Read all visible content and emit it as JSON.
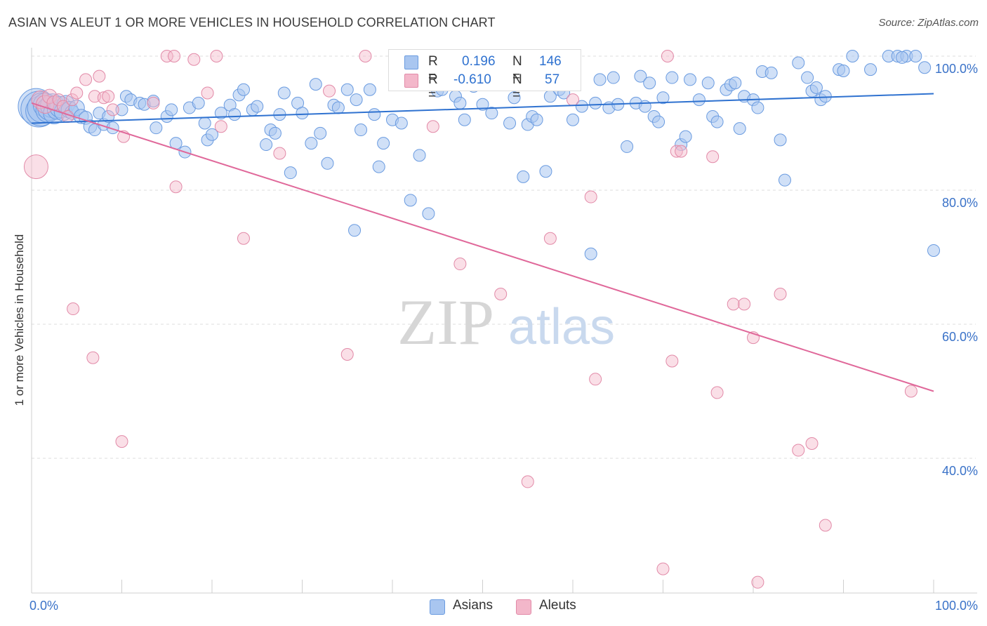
{
  "title": "ASIAN VS ALEUT 1 OR MORE VEHICLES IN HOUSEHOLD CORRELATION CHART",
  "source": "Source: ZipAtlas.com",
  "watermark": {
    "zip": "ZIP",
    "atlas": "atlas"
  },
  "legend": {
    "r_label": "R =",
    "n_label": "N =",
    "series": [
      {
        "name": "Asians",
        "r": "0.196",
        "n": "146",
        "color": "#6a9be0",
        "fill": "#a9c6f0",
        "line": "#2f72d0"
      },
      {
        "name": "Aleuts",
        "r": "-0.610",
        "n": "57",
        "color": "#e28aa8",
        "fill": "#f3b7ca",
        "line": "#e0689a"
      }
    ]
  },
  "chart_data": {
    "type": "scatter",
    "title": "ASIAN VS ALEUT 1 OR MORE VEHICLES IN HOUSEHOLD CORRELATION CHART",
    "xlabel": "",
    "ylabel": "1 or more Vehicles in Household",
    "xlim": [
      0,
      100
    ],
    "ylim": [
      20,
      102
    ],
    "x_tick_labels": [
      "0.0%",
      "100.0%"
    ],
    "y_tick_labels": [
      "40.0%",
      "60.0%",
      "80.0%",
      "100.0%"
    ],
    "y_ticks": [
      40,
      60,
      80,
      100
    ],
    "grid": true,
    "series": [
      {
        "name": "Asians",
        "trend": [
          [
            0,
            90.0
          ],
          [
            100,
            94.4
          ]
        ],
        "points": [
          [
            0.5,
            92.5,
            3
          ],
          [
            0.8,
            92.1,
            3
          ],
          [
            1.0,
            91.8,
            2.5
          ],
          [
            1.2,
            92.3,
            2.5
          ],
          [
            1.5,
            92.7,
            2
          ],
          [
            1.8,
            91.9,
            2
          ],
          [
            2.0,
            92.2,
            2
          ],
          [
            2.3,
            92.6,
            2
          ],
          [
            2.5,
            91.5,
            1.8
          ],
          [
            2.8,
            92.0,
            1.6
          ],
          [
            3.2,
            92.4,
            1.8
          ],
          [
            3.5,
            91.7,
            1.5
          ],
          [
            3.8,
            92.8,
            1.5
          ],
          [
            4.2,
            92.0,
            1.4
          ],
          [
            4.5,
            91.6,
            1.2
          ],
          [
            5.0,
            92.3,
            1.3
          ],
          [
            5.5,
            91.0,
            1.2
          ],
          [
            6.0,
            90.8,
            1.1
          ],
          [
            6.5,
            89.5,
            1.1
          ],
          [
            7.0,
            89.0,
            1
          ],
          [
            7.5,
            91.5,
            1
          ],
          [
            8.0,
            89.8,
            1
          ],
          [
            8.5,
            91.0,
            1
          ],
          [
            9.0,
            89.3,
            1
          ],
          [
            10.0,
            92.0,
            1
          ],
          [
            10.5,
            94.0,
            1
          ],
          [
            11.0,
            93.5,
            1
          ],
          [
            12.0,
            93.0,
            1
          ],
          [
            12.5,
            92.8,
            1
          ],
          [
            13.5,
            93.3,
            1
          ],
          [
            13.8,
            89.3,
            1
          ],
          [
            15.0,
            91.0,
            1
          ],
          [
            15.5,
            92.0,
            1
          ],
          [
            16.0,
            87.0,
            1
          ],
          [
            17.0,
            85.7,
            1
          ],
          [
            17.5,
            92.3,
            1
          ],
          [
            18.5,
            93.0,
            1
          ],
          [
            19.5,
            87.5,
            1
          ],
          [
            20.0,
            88.3,
            1
          ],
          [
            19.2,
            90.0,
            1
          ],
          [
            21.0,
            91.5,
            1
          ],
          [
            22.0,
            92.7,
            1
          ],
          [
            22.5,
            91.3,
            1
          ],
          [
            23.0,
            94.2,
            1
          ],
          [
            23.5,
            95.0,
            1
          ],
          [
            24.5,
            92.0,
            1
          ],
          [
            25.0,
            92.5,
            1
          ],
          [
            26.0,
            86.8,
            1
          ],
          [
            26.5,
            89.0,
            1
          ],
          [
            27.0,
            88.5,
            1
          ],
          [
            27.5,
            91.3,
            1
          ],
          [
            28.0,
            94.5,
            1
          ],
          [
            28.7,
            82.6,
            1
          ],
          [
            29.5,
            93.0,
            1
          ],
          [
            30.0,
            91.5,
            1
          ],
          [
            31.0,
            87.0,
            1
          ],
          [
            31.5,
            95.8,
            1
          ],
          [
            32.0,
            88.5,
            1
          ],
          [
            32.8,
            84.0,
            1
          ],
          [
            33.5,
            92.7,
            1
          ],
          [
            34.0,
            92.3,
            1
          ],
          [
            35.0,
            95.0,
            1
          ],
          [
            35.8,
            74.0,
            1
          ],
          [
            36.0,
            93.5,
            1
          ],
          [
            36.5,
            89.0,
            1
          ],
          [
            37.5,
            95.0,
            1
          ],
          [
            38.0,
            91.3,
            1
          ],
          [
            38.5,
            83.5,
            1
          ],
          [
            39.0,
            87.0,
            1
          ],
          [
            40.0,
            90.5,
            1
          ],
          [
            41.0,
            90.0,
            1
          ],
          [
            42.0,
            78.5,
            1
          ],
          [
            43.0,
            85.2,
            1
          ],
          [
            44.0,
            76.5,
            1
          ],
          [
            45.0,
            94.8,
            1
          ],
          [
            45.5,
            95.0,
            1
          ],
          [
            46.5,
            96.0,
            1
          ],
          [
            47.0,
            94.0,
            1
          ],
          [
            47.5,
            93.0,
            1
          ],
          [
            48.0,
            90.5,
            1
          ],
          [
            49.0,
            95.5,
            1
          ],
          [
            50.0,
            92.8,
            1
          ],
          [
            51.0,
            91.5,
            1
          ],
          [
            52.0,
            96.0,
            1
          ],
          [
            53.0,
            90.0,
            1
          ],
          [
            53.5,
            93.8,
            1
          ],
          [
            54.5,
            82.0,
            1
          ],
          [
            55.0,
            89.8,
            1
          ],
          [
            55.5,
            91.0,
            1
          ],
          [
            56.0,
            90.5,
            1
          ],
          [
            57.0,
            82.8,
            1
          ],
          [
            57.5,
            94.0,
            1
          ],
          [
            58.5,
            95.0,
            1
          ],
          [
            59.0,
            94.5,
            1
          ],
          [
            60.0,
            90.5,
            1
          ],
          [
            61.0,
            92.5,
            1
          ],
          [
            62.0,
            70.5,
            1
          ],
          [
            62.5,
            93.0,
            1
          ],
          [
            63.0,
            96.5,
            1
          ],
          [
            64.0,
            92.3,
            1
          ],
          [
            64.5,
            96.8,
            1
          ],
          [
            65.0,
            92.8,
            1
          ],
          [
            66.0,
            86.5,
            1
          ],
          [
            67.0,
            93.0,
            1
          ],
          [
            67.5,
            97.0,
            1
          ],
          [
            68.0,
            92.5,
            1
          ],
          [
            68.5,
            96.0,
            1
          ],
          [
            69.0,
            91.0,
            1
          ],
          [
            69.5,
            90.2,
            1
          ],
          [
            70.0,
            93.8,
            1
          ],
          [
            71.0,
            96.8,
            1
          ],
          [
            72.0,
            86.8,
            1
          ],
          [
            72.5,
            88.0,
            1
          ],
          [
            73.0,
            96.5,
            1
          ],
          [
            74.0,
            93.5,
            1
          ],
          [
            75.0,
            96.0,
            1
          ],
          [
            75.5,
            91.0,
            1
          ],
          [
            76.0,
            90.2,
            1
          ],
          [
            77.0,
            95.0,
            1
          ],
          [
            77.5,
            95.7,
            1
          ],
          [
            78.0,
            96.0,
            1
          ],
          [
            78.5,
            89.2,
            1
          ],
          [
            79.0,
            94.0,
            1
          ],
          [
            80.0,
            93.5,
            1
          ],
          [
            80.5,
            92.3,
            1
          ],
          [
            81.0,
            97.7,
            1
          ],
          [
            82.0,
            97.5,
            1
          ],
          [
            83.0,
            87.5,
            1
          ],
          [
            83.5,
            81.5,
            1
          ],
          [
            85.0,
            99.0,
            1
          ],
          [
            86.0,
            96.8,
            1
          ],
          [
            86.5,
            94.8,
            1
          ],
          [
            87.0,
            95.3,
            1
          ],
          [
            87.5,
            93.5,
            1
          ],
          [
            88.0,
            94.0,
            1
          ],
          [
            89.5,
            98.0,
            1
          ],
          [
            90.0,
            97.8,
            1
          ],
          [
            91.0,
            100.0,
            1
          ],
          [
            93.0,
            98.0,
            1
          ],
          [
            95.0,
            100.0,
            1
          ],
          [
            96.0,
            100.0,
            1
          ],
          [
            97.0,
            100.0,
            1
          ],
          [
            98.0,
            100.0,
            1
          ],
          [
            99.0,
            98.3,
            1
          ],
          [
            100.0,
            71.0,
            1
          ],
          [
            96.5,
            99.8,
            1
          ]
        ]
      },
      {
        "name": "Aleuts",
        "trend": [
          [
            0,
            93.0
          ],
          [
            100,
            50.0
          ]
        ],
        "points": [
          [
            0.5,
            83.5,
            2
          ],
          [
            1.0,
            93.5,
            1.5
          ],
          [
            1.5,
            92.8,
            1.5
          ],
          [
            2.0,
            94.0,
            1.2
          ],
          [
            2.5,
            93.0,
            1.2
          ],
          [
            3.0,
            93.5,
            1
          ],
          [
            3.5,
            92.5,
            1
          ],
          [
            4.0,
            91.0,
            1
          ],
          [
            4.5,
            93.5,
            1
          ],
          [
            5.0,
            94.5,
            1
          ],
          [
            4.6,
            62.3,
            1
          ],
          [
            6.0,
            96.5,
            1
          ],
          [
            6.8,
            55.0,
            1
          ],
          [
            7.0,
            94.0,
            1
          ],
          [
            7.5,
            97.0,
            1
          ],
          [
            8.0,
            93.8,
            1
          ],
          [
            8.5,
            94.0,
            1
          ],
          [
            9.0,
            92.0,
            1
          ],
          [
            10.0,
            42.5,
            1
          ],
          [
            10.2,
            88.0,
            1
          ],
          [
            13.5,
            93.0,
            1
          ],
          [
            15.0,
            100.0,
            1
          ],
          [
            15.8,
            100.0,
            1
          ],
          [
            16.0,
            80.5,
            1
          ],
          [
            18.0,
            99.5,
            1
          ],
          [
            19.5,
            94.5,
            1
          ],
          [
            20.5,
            100.0,
            1
          ],
          [
            21.0,
            89.5,
            1
          ],
          [
            23.5,
            72.8,
            1
          ],
          [
            27.5,
            85.5,
            1
          ],
          [
            33.0,
            94.8,
            1
          ],
          [
            35.0,
            55.5,
            1
          ],
          [
            37.0,
            100.0,
            1
          ],
          [
            44.5,
            89.5,
            1
          ],
          [
            47.5,
            69.0,
            1
          ],
          [
            52.0,
            64.5,
            1
          ],
          [
            55.0,
            36.5,
            1
          ],
          [
            57.5,
            72.8,
            1
          ],
          [
            62.0,
            79.0,
            1
          ],
          [
            62.5,
            51.8,
            1
          ],
          [
            71.0,
            54.5,
            1
          ],
          [
            71.5,
            85.8,
            1
          ],
          [
            72.0,
            85.8,
            1
          ],
          [
            70.0,
            23.5,
            1
          ],
          [
            75.5,
            85.0,
            1
          ],
          [
            76.0,
            49.8,
            1
          ],
          [
            77.8,
            63.0,
            1
          ],
          [
            79.0,
            63.0,
            1
          ],
          [
            80.0,
            58.0,
            1
          ],
          [
            80.5,
            21.5,
            1
          ],
          [
            83.0,
            64.5,
            1
          ],
          [
            85.0,
            41.2,
            1
          ],
          [
            86.5,
            42.2,
            1
          ],
          [
            88.0,
            30.0,
            1
          ],
          [
            97.5,
            50.0,
            1
          ],
          [
            70.5,
            100.0,
            1
          ],
          [
            60.0,
            93.5,
            1
          ]
        ]
      }
    ]
  }
}
